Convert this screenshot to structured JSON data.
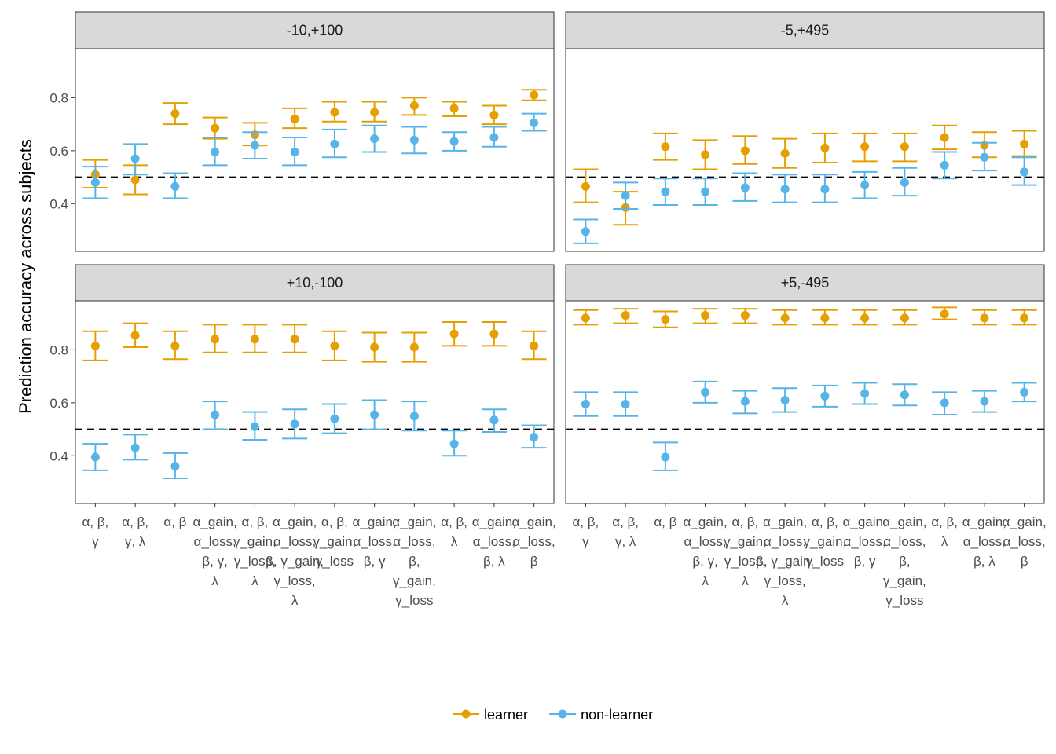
{
  "colors": {
    "learner": "#E69F00",
    "non_learner": "#56B4E9",
    "strip_fill": "#D9D9D9",
    "panel_border": "#333333",
    "reference_line": "#000000"
  },
  "chart_data": {
    "type": "scatter",
    "ylabel": "Prediction accuracy across subjects",
    "xlabel": "",
    "ylim": [
      0.22,
      0.985
    ],
    "y_ticks": [
      0.4,
      0.6,
      0.8
    ],
    "y_tick_labels": [
      "0.4",
      "0.6",
      "0.8"
    ],
    "reference_line": 0.5,
    "grid": false,
    "legend_position": "bottom",
    "categories": [
      "α, β, γ",
      "α, β, γ, λ",
      "α, β",
      "α_gain, α_loss, β, γ, λ",
      "α, β, γ_gain, γ_loss, λ",
      "α_gain, α_loss, β, γ_gain, γ_loss, λ",
      "α, β, γ_gain, γ_loss",
      "α_gain, α_loss, β, γ",
      "α_gain, α_loss, β, γ_gain, γ_loss",
      "α, β, λ",
      "α_gain, α_loss, β, λ",
      "α_gain, α_loss, β"
    ],
    "category_label_lines": [
      [
        "α, β,",
        "γ"
      ],
      [
        "α, β,",
        "γ, λ"
      ],
      [
        "α, β"
      ],
      [
        "α_gain,",
        "α_loss,",
        "β, γ,",
        "λ"
      ],
      [
        "α, β,",
        "γ_gain,",
        "γ_loss,",
        "λ"
      ],
      [
        "α_gain,",
        "α_loss,",
        "β, γ_gain,",
        "γ_loss,",
        "λ"
      ],
      [
        "α, β,",
        "γ_gain,",
        "γ_loss"
      ],
      [
        "α_gain,",
        "α_loss,",
        "β, γ"
      ],
      [
        "α_gain,",
        "α_loss,",
        "β,",
        "γ_gain,",
        "γ_loss"
      ],
      [
        "α, β,",
        "λ"
      ],
      [
        "α_gain,",
        "α_loss,",
        "β, λ"
      ],
      [
        "α_gain,",
        "α_loss,",
        "β"
      ]
    ],
    "legend": [
      "learner",
      "non-learner"
    ],
    "panels": [
      {
        "title": "-10,+100",
        "series": [
          {
            "name": "learner",
            "values": [
              0.51,
              0.49,
              0.74,
              0.685,
              0.66,
              0.72,
              0.745,
              0.745,
              0.77,
              0.76,
              0.735,
              0.81
            ],
            "lower": [
              0.46,
              0.435,
              0.7,
              0.645,
              0.62,
              0.685,
              0.71,
              0.71,
              0.735,
              0.73,
              0.7,
              0.79
            ],
            "upper": [
              0.565,
              0.545,
              0.78,
              0.725,
              0.705,
              0.76,
              0.785,
              0.785,
              0.8,
              0.785,
              0.77,
              0.83
            ]
          },
          {
            "name": "non-learner",
            "values": [
              0.48,
              0.57,
              0.465,
              0.595,
              0.62,
              0.595,
              0.625,
              0.645,
              0.64,
              0.635,
              0.65,
              0.705
            ],
            "lower": [
              0.42,
              0.51,
              0.42,
              0.545,
              0.57,
              0.545,
              0.575,
              0.595,
              0.59,
              0.6,
              0.615,
              0.675
            ],
            "upper": [
              0.54,
              0.625,
              0.515,
              0.65,
              0.67,
              0.65,
              0.68,
              0.695,
              0.69,
              0.67,
              0.69,
              0.74
            ]
          }
        ]
      },
      {
        "title": "-5,+495",
        "series": [
          {
            "name": "learner",
            "values": [
              0.465,
              0.385,
              0.615,
              0.585,
              0.6,
              0.59,
              0.61,
              0.615,
              0.615,
              0.65,
              0.62,
              0.625
            ],
            "lower": [
              0.405,
              0.32,
              0.565,
              0.53,
              0.55,
              0.535,
              0.555,
              0.56,
              0.56,
              0.605,
              0.575,
              0.58
            ],
            "upper": [
              0.53,
              0.445,
              0.665,
              0.64,
              0.655,
              0.645,
              0.665,
              0.665,
              0.665,
              0.695,
              0.67,
              0.675
            ]
          },
          {
            "name": "non-learner",
            "values": [
              0.295,
              0.43,
              0.445,
              0.445,
              0.46,
              0.455,
              0.455,
              0.47,
              0.48,
              0.545,
              0.575,
              0.52
            ],
            "lower": [
              0.25,
              0.38,
              0.395,
              0.395,
              0.41,
              0.405,
              0.405,
              0.42,
              0.43,
              0.495,
              0.525,
              0.47
            ],
            "upper": [
              0.34,
              0.48,
              0.495,
              0.495,
              0.515,
              0.51,
              0.51,
              0.52,
              0.535,
              0.595,
              0.63,
              0.575
            ]
          }
        ]
      },
      {
        "title": "+10,-100",
        "series": [
          {
            "name": "learner",
            "values": [
              0.815,
              0.855,
              0.815,
              0.84,
              0.84,
              0.84,
              0.815,
              0.81,
              0.81,
              0.86,
              0.86,
              0.815
            ],
            "lower": [
              0.76,
              0.81,
              0.765,
              0.79,
              0.79,
              0.79,
              0.76,
              0.755,
              0.755,
              0.815,
              0.815,
              0.765
            ],
            "upper": [
              0.87,
              0.9,
              0.87,
              0.895,
              0.895,
              0.895,
              0.87,
              0.865,
              0.865,
              0.905,
              0.905,
              0.87
            ]
          },
          {
            "name": "non-learner",
            "values": [
              0.395,
              0.43,
              0.36,
              0.555,
              0.51,
              0.52,
              0.54,
              0.555,
              0.55,
              0.445,
              0.535,
              0.47
            ],
            "lower": [
              0.345,
              0.385,
              0.315,
              0.5,
              0.46,
              0.465,
              0.485,
              0.5,
              0.495,
              0.4,
              0.49,
              0.43
            ],
            "upper": [
              0.445,
              0.48,
              0.41,
              0.605,
              0.565,
              0.575,
              0.595,
              0.61,
              0.605,
              0.495,
              0.575,
              0.515
            ]
          }
        ]
      },
      {
        "title": "+5,-495",
        "series": [
          {
            "name": "learner",
            "values": [
              0.92,
              0.93,
              0.915,
              0.93,
              0.93,
              0.92,
              0.92,
              0.92,
              0.92,
              0.935,
              0.92,
              0.92
            ],
            "lower": [
              0.895,
              0.9,
              0.885,
              0.9,
              0.9,
              0.895,
              0.895,
              0.895,
              0.895,
              0.915,
              0.895,
              0.895
            ],
            "upper": [
              0.95,
              0.955,
              0.945,
              0.955,
              0.955,
              0.95,
              0.95,
              0.95,
              0.95,
              0.96,
              0.95,
              0.95
            ]
          },
          {
            "name": "non-learner",
            "values": [
              0.595,
              0.595,
              0.395,
              0.64,
              0.605,
              0.61,
              0.625,
              0.635,
              0.63,
              0.6,
              0.605,
              0.64
            ],
            "lower": [
              0.55,
              0.55,
              0.345,
              0.6,
              0.56,
              0.565,
              0.585,
              0.595,
              0.59,
              0.555,
              0.565,
              0.605
            ],
            "upper": [
              0.64,
              0.64,
              0.45,
              0.68,
              0.645,
              0.655,
              0.665,
              0.675,
              0.67,
              0.64,
              0.645,
              0.675
            ]
          }
        ]
      }
    ]
  }
}
